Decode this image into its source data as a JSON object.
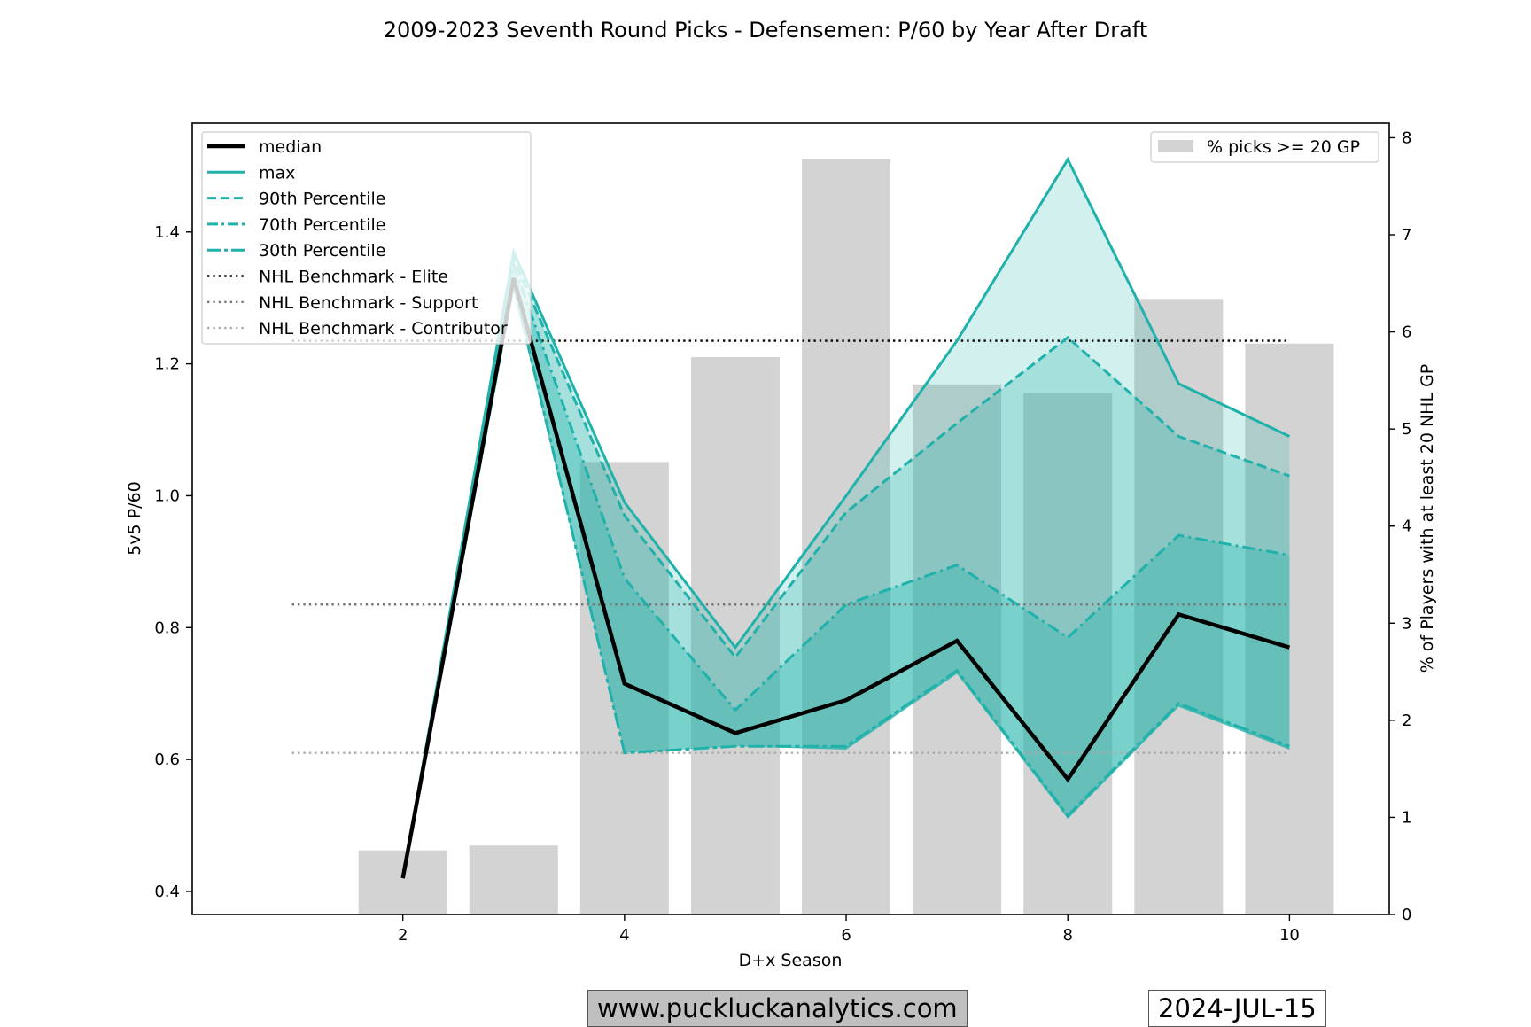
{
  "chart_data": {
    "type": "line",
    "title": "2009-2023 Seventh Round Picks - Defensemen: P/60 by Year After Draft",
    "xlabel": "D+x Season",
    "ylabel": "5v5 P/60",
    "y2label": "% of Players with at least 20 NHL GP",
    "xlim": [
      0.1,
      10.9
    ],
    "ylim": [
      0.365,
      1.565
    ],
    "y2lim": [
      0,
      8.15
    ],
    "x_ticks": [
      2,
      4,
      6,
      8,
      10
    ],
    "y_ticks": [
      0.4,
      0.6,
      0.8,
      1.0,
      1.2,
      1.4
    ],
    "y_tick_labels": [
      "0.4",
      "0.6",
      "0.8",
      "1.0",
      "1.2",
      "1.4"
    ],
    "y2_ticks": [
      0,
      1,
      2,
      3,
      4,
      5,
      6,
      7,
      8
    ],
    "x": [
      2,
      3,
      4,
      5,
      6,
      7,
      8,
      9,
      10
    ],
    "series": [
      {
        "name": "median",
        "style": "solid-thick",
        "color": "#000000",
        "values": [
          0.42,
          1.33,
          0.715,
          0.64,
          0.69,
          0.78,
          0.57,
          0.82,
          0.77
        ]
      },
      {
        "name": "max",
        "style": "solid",
        "color": "#20b2aa",
        "values": [
          0.42,
          1.37,
          0.99,
          0.77,
          1.0,
          1.235,
          1.51,
          1.17,
          1.09
        ]
      },
      {
        "name": "90th Percentile",
        "style": "dashed",
        "color": "#20b2aa",
        "values": [
          0.42,
          1.36,
          0.97,
          0.755,
          0.975,
          1.11,
          1.24,
          1.09,
          1.03
        ]
      },
      {
        "name": "70th Percentile",
        "style": "dashdot",
        "color": "#20b2aa",
        "values": [
          0.42,
          1.35,
          0.875,
          0.675,
          0.835,
          0.895,
          0.785,
          0.94,
          0.91
        ]
      },
      {
        "name": "30th Percentile",
        "style": "dashdot2",
        "color": "#20b2aa",
        "values": [
          0.42,
          1.32,
          0.61,
          0.62,
          0.62,
          0.735,
          0.515,
          0.685,
          0.62
        ]
      }
    ],
    "fill_base_values": [
      0.42,
      1.31,
      0.61,
      0.62,
      0.615,
      0.73,
      0.51,
      0.68,
      0.615
    ],
    "benchmarks": [
      {
        "name": "NHL Benchmark - Elite",
        "value": 1.235,
        "color": "#000000"
      },
      {
        "name": "NHL Benchmark - Support",
        "value": 0.835,
        "color": "#777777"
      },
      {
        "name": "NHL Benchmark - Contributor",
        "value": 0.61,
        "color": "#aaaaaa"
      }
    ],
    "bars": {
      "name": "% picks >= 20 GP",
      "color": "#d3d3d3",
      "x": [
        2,
        3,
        4,
        5,
        6,
        7,
        8,
        9,
        10
      ],
      "values": [
        0.66,
        0.71,
        4.66,
        5.74,
        7.78,
        5.46,
        5.37,
        6.34,
        5.88
      ]
    },
    "legend_position": "upper-left",
    "bar_legend_position": "upper-right",
    "grid": false
  },
  "footer": {
    "website": "www.puckluckanalytics.com",
    "date": "2024-JUL-15"
  }
}
